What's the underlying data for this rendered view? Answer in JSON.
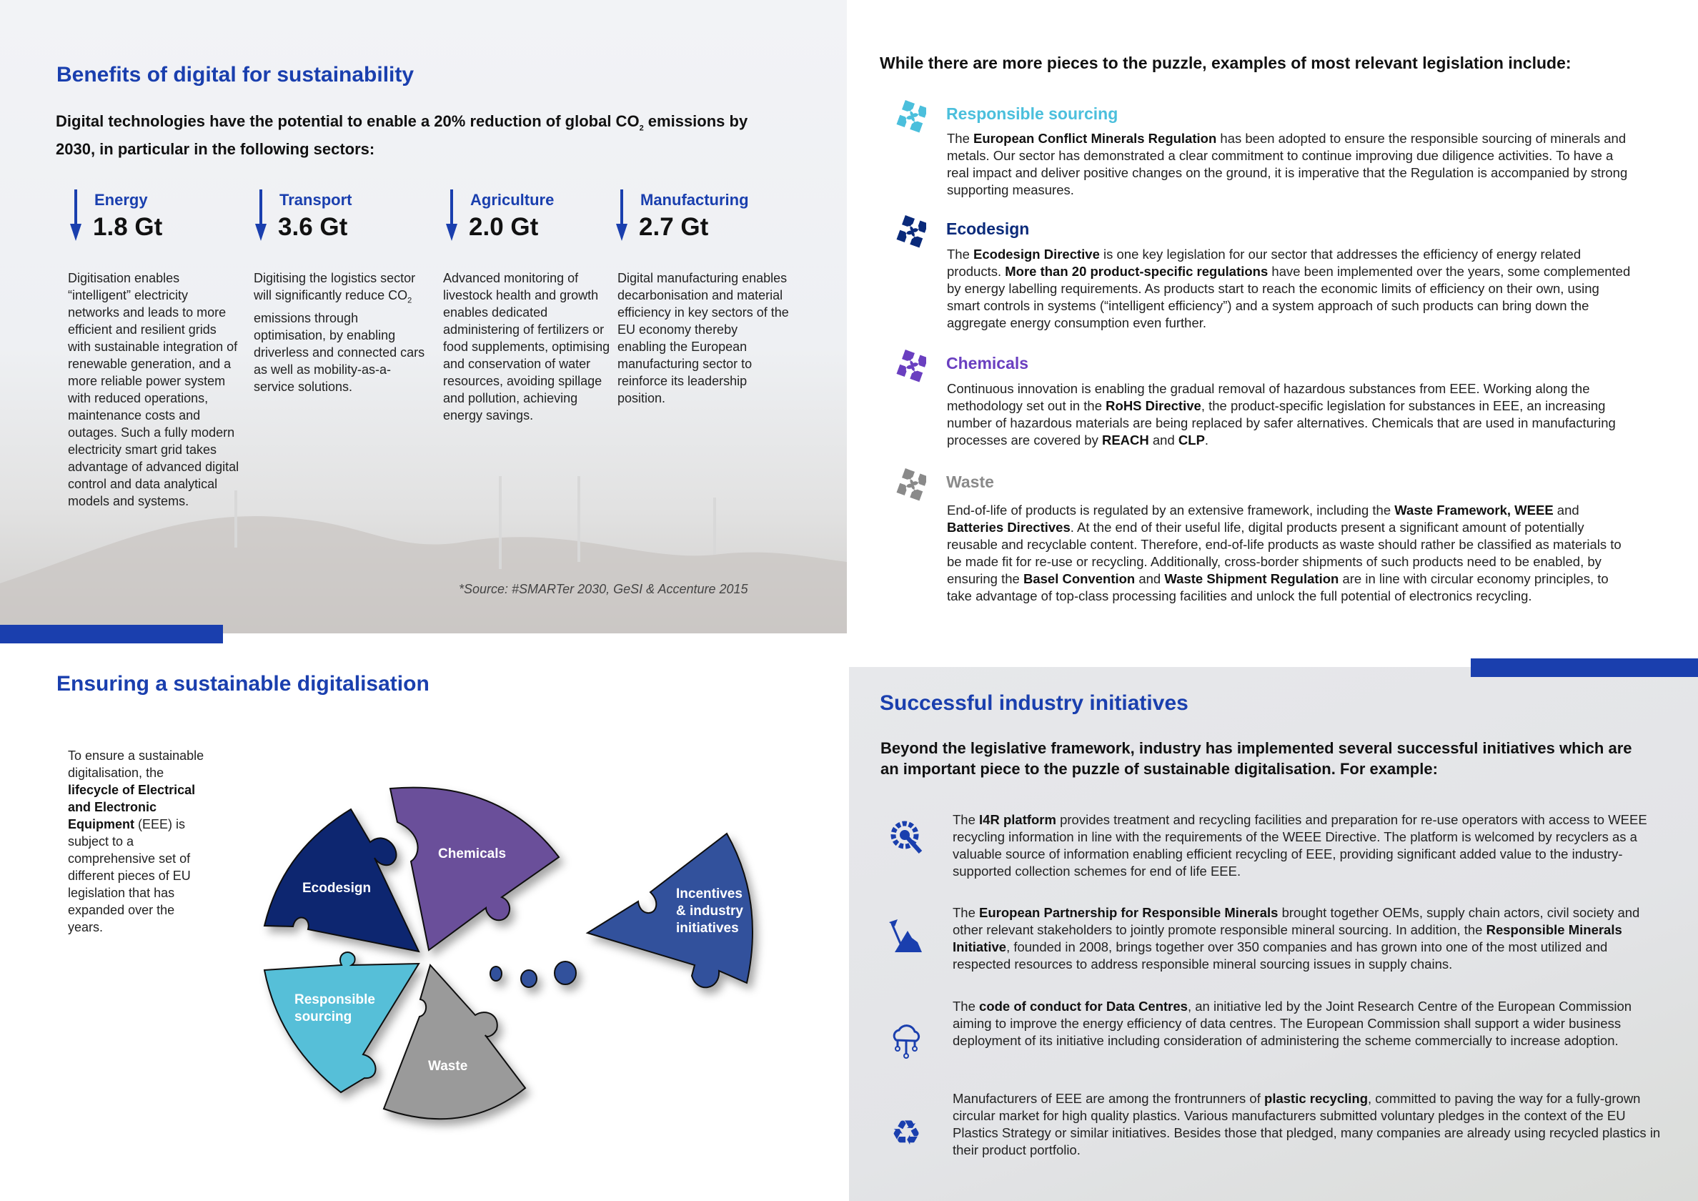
{
  "benefits": {
    "title": "Benefits of digital for sustainability",
    "intro": [
      {
        "t": "Digital technologies have the potential to enable a 20% reduction of global CO"
      },
      {
        "t": "2",
        "sub": true
      },
      {
        "t": " emissions by 2030, in particular in the following sectors:"
      }
    ],
    "sectors": [
      {
        "label": "Energy",
        "value": "1.8 Gt",
        "body": [
          {
            "t": "Digitisation enables “intelligent” electricity networks and leads to more efficient and resilient grids with sustainable integration of renewable generation, and a more reliable power system with reduced operations, maintenance costs and outages. Such a fully modern electricity smart grid takes advantage of advanced digital control and data analytical models and systems."
          }
        ]
      },
      {
        "label": "Transport",
        "value": "3.6 Gt",
        "body": [
          {
            "t": "Digitising the logistics sector will significantly reduce CO"
          },
          {
            "t": "2",
            "sub": true
          },
          {
            "t": " emissions through optimisation, by enabling driverless and connected cars as well as mobility-as-a-service solutions."
          }
        ]
      },
      {
        "label": "Agriculture",
        "value": "2.0 Gt",
        "body": [
          {
            "t": "Advanced monitoring of livestock health and growth enables dedicated administering of fertilizers or food supplements, optimising and conservation of water resources, avoiding spillage and pollution, achieving energy savings."
          }
        ]
      },
      {
        "label": "Manufacturing",
        "value": "2.7 Gt",
        "body": [
          {
            "t": "Digital manufacturing enables decarbonisation and material efficiency in key sectors of the EU economy thereby enabling the European manufacturing sector to reinforce its leadership position."
          }
        ]
      }
    ],
    "source": "*Source: #SMARTer 2030, GeSI & Accenture 2015"
  },
  "legislation": {
    "heading": "While there are more pieces to the puzzle, examples of most relevant legislation include:",
    "items": [
      {
        "title": "Responsible sourcing",
        "color": "#4bbfdc",
        "icon": "puzzle-icon",
        "body": [
          {
            "t": "The "
          },
          {
            "t": "European Conflict Minerals Regulation",
            "b": true
          },
          {
            "t": " has been adopted to ensure the responsible sourcing of minerals and metals. Our sector has demonstrated a clear commitment to continue improving due diligence activities. To have a real impact and deliver positive changes on the ground, it is imperative that the Regulation is accompanied by strong supporting measures."
          }
        ]
      },
      {
        "title": "Ecodesign",
        "color": "#0a2a7a",
        "icon": "puzzle-icon",
        "body": [
          {
            "t": "The "
          },
          {
            "t": "Ecodesign Directive",
            "b": true
          },
          {
            "t": " is one key legislation for our sector that addresses the efficiency of energy related products. "
          },
          {
            "t": "More than 20 product-specific regulations",
            "b": true
          },
          {
            "t": " have been implemented over the years, some complemented by energy labelling requirements. As products start to reach the economic limits of efficiency on their own, using smart controls in systems (“intelligent efficiency”) and a system approach of such products can bring down the aggregate energy consumption even further."
          }
        ]
      },
      {
        "title": "Chemicals",
        "color": "#6a3fc0",
        "icon": "puzzle-icon",
        "body": [
          {
            "t": "Continuous innovation is enabling the gradual removal of hazardous substances from EEE. Working along the methodology set out in the "
          },
          {
            "t": "RoHS Directive",
            "b": true
          },
          {
            "t": ", the product-specific legislation for substances in EEE, an increasing number of hazardous materials are being replaced by safer alternatives. Chemicals that are used in manufacturing processes are covered by "
          },
          {
            "t": "REACH",
            "b": true
          },
          {
            "t": " and "
          },
          {
            "t": "CLP",
            "b": true
          },
          {
            "t": "."
          }
        ]
      },
      {
        "title": "Waste",
        "color": "#8a8a8a",
        "icon": "puzzle-icon",
        "body": [
          {
            "t": "End-of-life of products is regulated by an extensive framework, including the "
          },
          {
            "t": "Waste Framework, WEEE",
            "b": true
          },
          {
            "t": " and "
          },
          {
            "t": "Batteries Directives",
            "b": true
          },
          {
            "t": ". At the end of their useful life, digital products present a significant amount of potentially reusable and recyclable content. Therefore, end-of-life products as waste should rather be classified as materials to be made fit for re-use or recycling. Additionally, cross-border shipments of such products need to be enabled, by ensuring the "
          },
          {
            "t": "Basel Convention",
            "b": true
          },
          {
            "t": " and "
          },
          {
            "t": "Waste Shipment Regulation",
            "b": true
          },
          {
            "t": " are in line with circular economy principles, to take advantage of top-class processing facilities and unlock the full potential of electronics recycling."
          }
        ]
      }
    ]
  },
  "ensuring": {
    "title": "Ensuring a sustainable digitalisation",
    "body": [
      {
        "t": "To ensure a sustainable digitalisation, the "
      },
      {
        "t": "lifecycle of Electrical and Electronic Equipment",
        "b": true
      },
      {
        "t": " (EEE) is subject to a comprehensive set of different pieces of EU legislation that has expanded over the years."
      }
    ],
    "pieces": {
      "ecodesign": "Ecodesign",
      "chemicals": "Chemicals",
      "incentives": [
        "Incentives",
        "& industry",
        "initiatives"
      ],
      "responsible": [
        "Responsible",
        "sourcing"
      ],
      "waste": "Waste"
    },
    "colors": {
      "ecodesign": "#0a2570",
      "chemicals": "#6a4f9a",
      "incentives": "#30519c",
      "responsible": "#56bfd8",
      "waste": "#9a9a9a"
    }
  },
  "initiatives": {
    "title": "Successful industry initiatives",
    "intro": "Beyond the legislative framework, industry has implemented several successful initiatives which are an important piece to the puzzle of sustainable digitalisation. For example:",
    "items": [
      {
        "icon": "gear-wrench-icon",
        "body": [
          {
            "t": "The "
          },
          {
            "t": "I4R platform",
            "b": true
          },
          {
            "t": " provides treatment and recycling facilities and preparation for re-use operators with access to WEEE recycling information in line with the requirements of the WEEE Directive. The platform is welcomed by recyclers as a valuable source of information enabling efficient recycling of EEE, providing significant added value to the industry-supported collection schemes for end of life EEE."
          }
        ]
      },
      {
        "icon": "mining-icon",
        "body": [
          {
            "t": "The "
          },
          {
            "t": "European Partnership for Responsible Minerals",
            "b": true
          },
          {
            "t": " brought together OEMs, supply chain actors, civil society and other relevant stakeholders to jointly promote responsible mineral sourcing. In addition, the "
          },
          {
            "t": "Responsible Minerals Initiative",
            "b": true
          },
          {
            "t": ", founded in 2008, brings together over 350 companies and has grown into one of the most utilized and respected resources to address responsible mineral sourcing issues in supply chains."
          }
        ]
      },
      {
        "icon": "cloud-network-icon",
        "body": [
          {
            "t": "The "
          },
          {
            "t": "code of conduct for Data Centres",
            "b": true
          },
          {
            "t": ", an initiative led by the Joint Research Centre of the European Commission aiming to improve the energy efficiency of data centres. The European Commission shall support a wider business deployment of its initiative including consideration of administering the scheme commercially to increase adoption."
          }
        ]
      },
      {
        "icon": "recycle-icon",
        "body": [
          {
            "t": "Manufacturers of EEE are among the frontrunners of "
          },
          {
            "t": "plastic recycling",
            "b": true
          },
          {
            "t": ", committed to paving the way for a fully-grown circular market for high quality plastics. Various manufacturers submitted voluntary pledges in the context of the EU Plastics Strategy or similar initiatives. Besides those that pledged, many companies are already using recycled plastics in their product portfolio."
          }
        ]
      }
    ]
  },
  "accent": "#1a3fae"
}
